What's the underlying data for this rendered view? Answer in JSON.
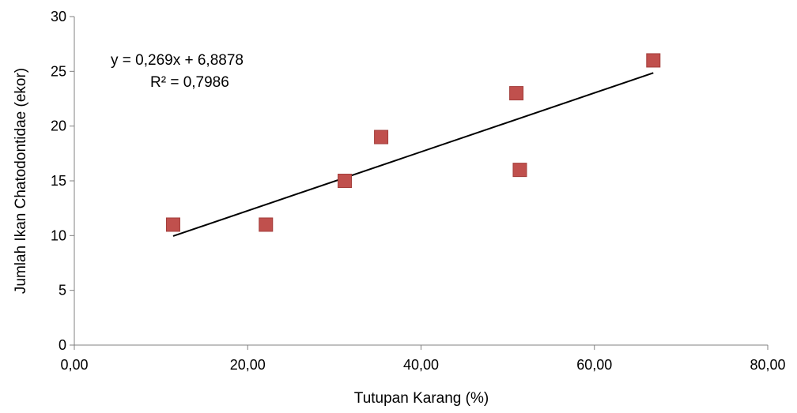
{
  "chart_data": {
    "type": "scatter",
    "xlabel": "Tutupan Karang (%)",
    "ylabel": "Jumlah Ikan Chatodontidae (ekor)",
    "xlim": [
      0,
      80
    ],
    "ylim": [
      0,
      30
    ],
    "x_ticks": [
      "0,00",
      "20,00",
      "40,00",
      "60,00",
      "80,00"
    ],
    "x_tick_values": [
      0,
      20,
      40,
      60,
      80
    ],
    "y_ticks": [
      "0",
      "5",
      "10",
      "15",
      "20",
      "25",
      "30"
    ],
    "y_tick_values": [
      0,
      5,
      10,
      15,
      20,
      25,
      30
    ],
    "grid": false,
    "marker_color": "#c0504d",
    "line_color": "#000000",
    "series": [
      {
        "points": [
          {
            "x": 11.4,
            "y": 11
          },
          {
            "x": 22.1,
            "y": 11
          },
          {
            "x": 31.2,
            "y": 15
          },
          {
            "x": 35.4,
            "y": 19
          },
          {
            "x": 51.0,
            "y": 23
          },
          {
            "x": 51.4,
            "y": 16
          },
          {
            "x": 66.8,
            "y": 26
          }
        ]
      }
    ],
    "trendline": {
      "slope": 0.269,
      "intercept": 6.8878,
      "x_range": [
        11.4,
        66.8
      ]
    },
    "annotations": {
      "equation": "y = 0,269x + 6,8878",
      "r_squared": "R² = 0,7986"
    }
  }
}
